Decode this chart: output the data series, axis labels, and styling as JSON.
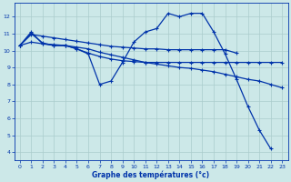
{
  "xlabel": "Graphe des températures (°c)",
  "bg_color": "#cce8e8",
  "grid_color": "#aacccc",
  "line_color": "#0033aa",
  "xlim": [
    -0.5,
    23.5
  ],
  "ylim": [
    3.5,
    12.8
  ],
  "x_ticks": [
    0,
    1,
    2,
    3,
    4,
    5,
    6,
    7,
    8,
    9,
    10,
    11,
    12,
    13,
    14,
    15,
    16,
    17,
    18,
    19,
    20,
    21,
    22,
    23
  ],
  "y_ticks": [
    4,
    5,
    6,
    7,
    8,
    9,
    10,
    11,
    12
  ],
  "series": [
    {
      "x": [
        0,
        1,
        2,
        3,
        4,
        5,
        6,
        7,
        8,
        9,
        10,
        11,
        12,
        13,
        14,
        15,
        16,
        17,
        18,
        19,
        20,
        21,
        22
      ],
      "y": [
        10.3,
        11.1,
        10.4,
        10.3,
        10.3,
        10.1,
        9.8,
        8.0,
        8.2,
        9.3,
        10.5,
        11.1,
        11.3,
        12.2,
        12.0,
        12.2,
        12.2,
        11.1,
        9.8,
        8.3,
        6.7,
        5.3,
        4.2
      ]
    },
    {
      "x": [
        0,
        1,
        2,
        3,
        4,
        5,
        6,
        7,
        8,
        9,
        10,
        11,
        12,
        13,
        14,
        15,
        16,
        17,
        18,
        19
      ],
      "y": [
        10.3,
        10.95,
        10.85,
        10.75,
        10.65,
        10.55,
        10.45,
        10.35,
        10.25,
        10.2,
        10.15,
        10.1,
        10.1,
        10.05,
        10.05,
        10.05,
        10.05,
        10.05,
        10.05,
        9.85
      ]
    },
    {
      "x": [
        0,
        1,
        2,
        3,
        4,
        5,
        6,
        7,
        8,
        9,
        10,
        11,
        12,
        13,
        14,
        15,
        16,
        17,
        18,
        19,
        20,
        21,
        22,
        23
      ],
      "y": [
        10.3,
        11.0,
        10.45,
        10.3,
        10.3,
        10.1,
        9.85,
        9.65,
        9.5,
        9.4,
        9.35,
        9.3,
        9.3,
        9.3,
        9.3,
        9.3,
        9.3,
        9.3,
        9.3,
        9.3,
        9.3,
        9.3,
        9.3,
        9.3
      ]
    },
    {
      "x": [
        0,
        1,
        2,
        3,
        4,
        5,
        6,
        7,
        8,
        9,
        10,
        11,
        12,
        13,
        14,
        15,
        16,
        17,
        18,
        19,
        20,
        21,
        22,
        23
      ],
      "y": [
        10.3,
        10.5,
        10.4,
        10.35,
        10.3,
        10.2,
        10.1,
        9.9,
        9.75,
        9.6,
        9.45,
        9.3,
        9.2,
        9.1,
        9.0,
        8.95,
        8.85,
        8.75,
        8.6,
        8.45,
        8.3,
        8.2,
        8.0,
        7.8
      ]
    }
  ]
}
